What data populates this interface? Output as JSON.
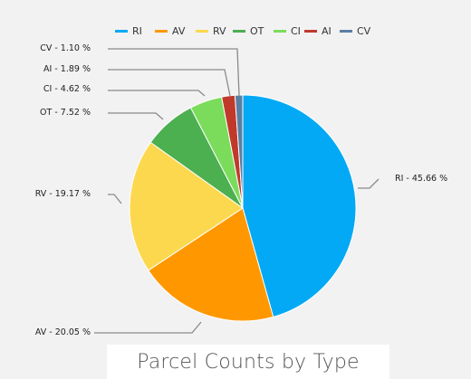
{
  "chart_data": {
    "type": "pie",
    "title": "Parcel Counts by Type",
    "legend_position": "top",
    "categories": [
      "RI",
      "AV",
      "RV",
      "OT",
      "CI",
      "AI",
      "CV"
    ],
    "values": [
      45.66,
      20.05,
      19.17,
      7.52,
      4.62,
      1.89,
      1.1
    ],
    "labels": [
      "RI - 45.66 %",
      "AV - 20.05 %",
      "RV - 19.17 %",
      "OT - 7.52 %",
      "CI - 4.62 %",
      "AI - 1.89 %",
      "CV - 1.10 %"
    ],
    "colors": [
      "#03a9f4",
      "#ff9800",
      "#fcd84e",
      "#4caf50",
      "#7bdc5c",
      "#c0392b",
      "#5b7ea3"
    ],
    "grid": false
  }
}
